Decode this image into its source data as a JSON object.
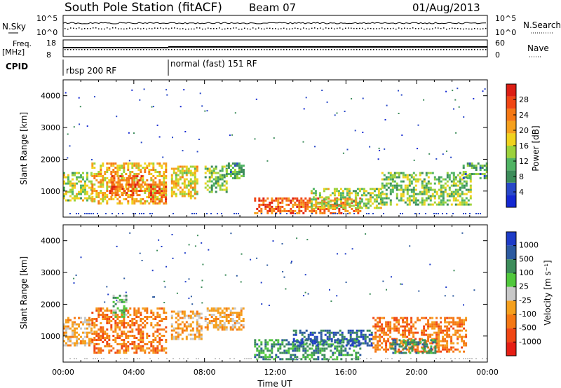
{
  "header": {
    "title": "South Pole Station (fitACF)",
    "beam": "Beam 07",
    "date": "01/Aug/2013"
  },
  "top_panels": {
    "nsky_label": "N.Sky",
    "nsearch_label": "N.Search",
    "noise_ticks": [
      "10^5",
      "10^0"
    ],
    "freq_label": "Freq.",
    "freq_unit": "[MHz]",
    "freq_ticks": [
      "18",
      "8"
    ],
    "nave_label": "Nave",
    "nave_ticks": [
      "60",
      "0"
    ],
    "cpid_label": "CPID",
    "cpid_segments": [
      "rbsp 200 RF",
      "normal (fast) 151 RF"
    ]
  },
  "chart_data": [
    {
      "type": "heatmap",
      "title": "Power",
      "ylabel": "Slant Range [km]",
      "yticks": [
        "1000",
        "2000",
        "3000",
        "4000"
      ],
      "ylim": [
        180,
        4500
      ],
      "xlabel": "",
      "xticks": [],
      "xlim": [
        0,
        24
      ],
      "colorbar": {
        "label": "Power [dB]",
        "ticks": [
          "4",
          "8",
          "12",
          "16",
          "20",
          "24",
          "28"
        ],
        "range": [
          0,
          32
        ],
        "colors": [
          "#1428d2",
          "#2848c8",
          "#3c8c5a",
          "#50b464",
          "#9cd23c",
          "#f0d21e",
          "#f5a01e",
          "#f57814",
          "#f04614",
          "#dc1e14"
        ]
      },
      "echo_regions": [
        {
          "t0": 0.0,
          "t1": 1.6,
          "r0": 700,
          "r1": 1600,
          "level": 14
        },
        {
          "t0": 1.6,
          "t1": 5.8,
          "r0": 600,
          "r1": 1900,
          "level": 20
        },
        {
          "t0": 2.6,
          "t1": 4.4,
          "r0": 900,
          "r1": 1500,
          "level": 27
        },
        {
          "t0": 4.8,
          "t1": 5.8,
          "r0": 700,
          "r1": 1300,
          "level": 26
        },
        {
          "t0": 6.1,
          "t1": 7.6,
          "r0": 800,
          "r1": 1800,
          "level": 18
        },
        {
          "t0": 8.0,
          "t1": 9.2,
          "r0": 1000,
          "r1": 1800,
          "level": 12
        },
        {
          "t0": 9.2,
          "t1": 10.2,
          "r0": 1400,
          "r1": 1900,
          "level": 10
        },
        {
          "t0": 10.8,
          "t1": 16.8,
          "r0": 300,
          "r1": 800,
          "level": 26
        },
        {
          "t0": 14.0,
          "t1": 18.0,
          "r0": 500,
          "r1": 1100,
          "level": 14
        },
        {
          "t0": 18.0,
          "t1": 23.0,
          "r0": 600,
          "r1": 1600,
          "level": 13
        },
        {
          "t0": 22.6,
          "t1": 24.0,
          "r0": 1400,
          "r1": 1900,
          "level": 10
        }
      ]
    },
    {
      "type": "heatmap",
      "title": "Velocity",
      "ylabel": "Slant Range [km]",
      "yticks": [
        "1000",
        "2000",
        "3000",
        "4000"
      ],
      "ylim": [
        180,
        4500
      ],
      "xlabel": "Time UT",
      "xticks": [
        "00:00",
        "04:00",
        "08:00",
        "12:00",
        "16:00",
        "20:00",
        "00:00"
      ],
      "xlim": [
        0,
        24
      ],
      "colorbar": {
        "label": "Velocity [m s⁻¹]",
        "ticks": [
          "1000",
          "500",
          "100",
          "25",
          "-25",
          "-100",
          "-500",
          "-1000"
        ],
        "colors": [
          "#1e3cc8",
          "#2c5aa0",
          "#3c8c5a",
          "#50c83c",
          "#c8c8c8",
          "#f5a01e",
          "#f57814",
          "#f04614",
          "#e61e14"
        ]
      },
      "echo_regions": [
        {
          "t0": 0.0,
          "t1": 1.6,
          "r0": 700,
          "r1": 1600,
          "class": "-100"
        },
        {
          "t0": 1.6,
          "t1": 5.8,
          "r0": 500,
          "r1": 1900,
          "class": "-500"
        },
        {
          "t0": 2.8,
          "t1": 3.6,
          "r0": 1600,
          "r1": 2300,
          "class": "25"
        },
        {
          "t0": 6.1,
          "t1": 7.8,
          "r0": 900,
          "r1": 1800,
          "class": "-100"
        },
        {
          "t0": 8.0,
          "t1": 10.2,
          "r0": 1200,
          "r1": 1900,
          "class": "-100"
        },
        {
          "t0": 10.8,
          "t1": 16.8,
          "r0": 250,
          "r1": 900,
          "class": "100"
        },
        {
          "t0": 13.0,
          "t1": 17.5,
          "r0": 700,
          "r1": 1200,
          "class": "500"
        },
        {
          "t0": 17.5,
          "t1": 22.8,
          "r0": 500,
          "r1": 1600,
          "class": "-500"
        },
        {
          "t0": 18.5,
          "t1": 21.0,
          "r0": 500,
          "r1": 900,
          "class": "100"
        }
      ]
    }
  ]
}
